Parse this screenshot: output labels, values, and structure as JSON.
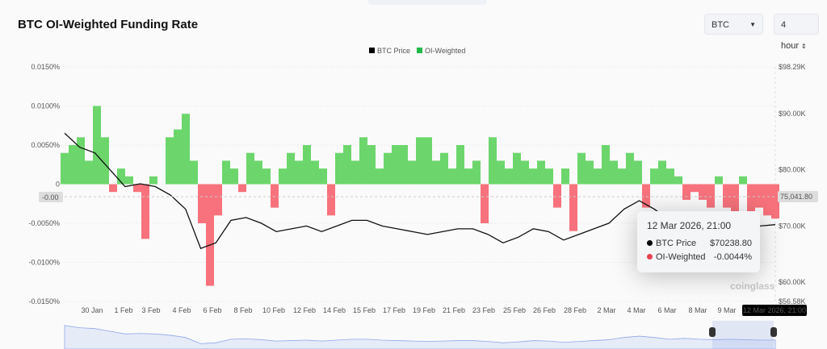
{
  "title": "BTC OI-Weighted Funding Rate",
  "controls": {
    "coin": "BTC",
    "interval": "4 hour"
  },
  "legend": [
    {
      "label": "BTC Price",
      "color": "#000000"
    },
    {
      "label": "OI-Weighted",
      "color": "#1fb84a"
    }
  ],
  "tooltip": {
    "date": "12 Mar 2026, 21:00",
    "rows": [
      {
        "label": "BTC Price",
        "value": "$70238.80",
        "color": "#000000"
      },
      {
        "label": "OI-Weighted",
        "value": "-0.0044%",
        "color": "#e8424f"
      }
    ]
  },
  "crosshair": {
    "left_label": "-0.00",
    "right_label": "75,041.80",
    "x_label": "12 Mar 2026, 21:00"
  },
  "watermark": "coinglass",
  "chart_data": {
    "type": "bar+line",
    "title": "BTC OI-Weighted Funding Rate",
    "colors": {
      "positive": "#6cd66c",
      "negative": "#f7727c",
      "price": "#111111"
    },
    "left_axis": {
      "ticks": [
        "0.0150%",
        "0.0100%",
        "0.0050%",
        "0",
        "-0.0050%",
        "-0.0100%",
        "-0.0150%"
      ],
      "range": [
        -0.015,
        0.015
      ]
    },
    "right_axis": {
      "ticks": [
        "$98.29K",
        "$90.00K",
        "$80.00K",
        "$70.00K",
        "$60.00K",
        "$56.58K"
      ],
      "range": [
        56.58,
        98.29
      ]
    },
    "x_ticks": [
      "30 Jan",
      "1 Feb",
      "3 Feb",
      "4 Feb",
      "6 Feb",
      "8 Feb",
      "10 Feb",
      "12 Feb",
      "14 Feb",
      "15 Feb",
      "17 Feb",
      "19 Feb",
      "21 Feb",
      "23 Feb",
      "25 Feb",
      "26 Feb",
      "28 Feb",
      "2 Mar",
      "4 Mar",
      "6 Mar",
      "8 Mar",
      "9 Mar"
    ],
    "funding_rate_pct": [
      0.004,
      0.005,
      0.006,
      0.003,
      0.01,
      0.006,
      -0.001,
      0.002,
      0.001,
      -0.001,
      -0.007,
      0.001,
      0.0,
      0.006,
      0.007,
      0.009,
      0.003,
      -0.005,
      -0.013,
      -0.004,
      0.003,
      0.002,
      -0.001,
      0.004,
      0.003,
      0.002,
      -0.003,
      0.002,
      0.004,
      0.003,
      0.005,
      0.003,
      0.002,
      -0.004,
      0.004,
      0.005,
      0.003,
      0.006,
      0.005,
      0.002,
      0.004,
      0.005,
      0.005,
      0.003,
      0.006,
      0.006,
      0.003,
      0.004,
      0.002,
      0.005,
      0.002,
      0.003,
      -0.005,
      0.006,
      0.003,
      0.002,
      0.004,
      0.003,
      0.002,
      0.003,
      0.002,
      -0.003,
      0.002,
      -0.006,
      0.004,
      0.003,
      0.002,
      0.005,
      0.003,
      0.002,
      0.004,
      0.003,
      -0.003,
      0.002,
      0.003,
      0.002,
      0.001,
      -0.002,
      -0.001,
      -0.002,
      -0.003,
      0.001,
      -0.003,
      -0.004,
      0.001,
      -0.005,
      -0.003,
      -0.004,
      -0.0044
    ],
    "btc_price_k": [
      86.5,
      84,
      83,
      80,
      77,
      77.5,
      77,
      75.5,
      73,
      66,
      67,
      71,
      71.5,
      70.5,
      69,
      69.5,
      70,
      69,
      70,
      71,
      71,
      70,
      69.5,
      69,
      68.5,
      69,
      69.5,
      69.5,
      68.5,
      67,
      68,
      69.5,
      69,
      67.5,
      68.5,
      69.5,
      70.5,
      73,
      74.5,
      73,
      71,
      72,
      71,
      70.5,
      71,
      70.5,
      70,
      70.24
    ]
  }
}
